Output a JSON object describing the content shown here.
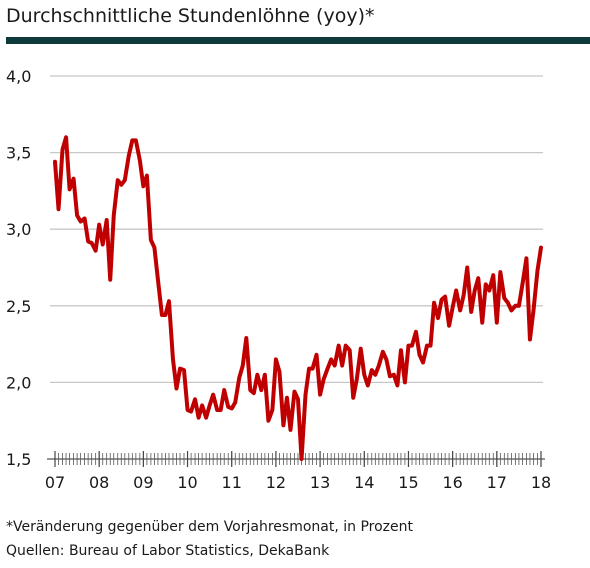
{
  "chart_data": {
    "type": "line",
    "title": "Durchschnittliche Stundenlöhne (yoy)*",
    "notes": [
      "*Veränderung gegenüber dem Vorjahresmonat, in Prozent",
      "Quellen: Bureau of Labor Statistics, DekaBank"
    ],
    "xlim": [
      7,
      18
    ],
    "xticks": [
      {
        "value": 7,
        "label": "07"
      },
      {
        "value": 8,
        "label": "08"
      },
      {
        "value": 9,
        "label": "09"
      },
      {
        "value": 10,
        "label": "10"
      },
      {
        "value": 11,
        "label": "11"
      },
      {
        "value": 12,
        "label": "12"
      },
      {
        "value": 13,
        "label": "13"
      },
      {
        "value": 14,
        "label": "14"
      },
      {
        "value": 15,
        "label": "15"
      },
      {
        "value": 16,
        "label": "16"
      },
      {
        "value": 17,
        "label": "17"
      },
      {
        "value": 18,
        "label": "18"
      }
    ],
    "ylim": [
      1.5,
      4.0
    ],
    "yticks": [
      {
        "value": 1.5,
        "label": "1,5"
      },
      {
        "value": 2.0,
        "label": "2,0"
      },
      {
        "value": 2.5,
        "label": "2,5"
      },
      {
        "value": 3.0,
        "label": "3,0"
      },
      {
        "value": 3.5,
        "label": "3,5"
      },
      {
        "value": 4.0,
        "label": "4,0"
      }
    ],
    "grid": true,
    "x": [
      7.0,
      7.08,
      7.17,
      7.25,
      7.33,
      7.42,
      7.5,
      7.58,
      7.67,
      7.75,
      7.83,
      7.92,
      8.0,
      8.08,
      8.17,
      8.25,
      8.33,
      8.42,
      8.5,
      8.58,
      8.67,
      8.75,
      8.83,
      8.92,
      9.0,
      9.08,
      9.17,
      9.25,
      9.33,
      9.42,
      9.5,
      9.58,
      9.67,
      9.75,
      9.83,
      9.92,
      10.0,
      10.08,
      10.17,
      10.25,
      10.33,
      10.42,
      10.5,
      10.58,
      10.67,
      10.75,
      10.83,
      10.92,
      11.0,
      11.08,
      11.17,
      11.25,
      11.33,
      11.42,
      11.5,
      11.58,
      11.67,
      11.75,
      11.83,
      11.92,
      12.0,
      12.08,
      12.17,
      12.25,
      12.33,
      12.42,
      12.5,
      12.58,
      12.67,
      12.75,
      12.83,
      12.92,
      13.0,
      13.08,
      13.17,
      13.25,
      13.33,
      13.42,
      13.5,
      13.58,
      13.67,
      13.75,
      13.83,
      13.92,
      14.0,
      14.08,
      14.17,
      14.25,
      14.33,
      14.42,
      14.5,
      14.58,
      14.67,
      14.75,
      14.83,
      14.92,
      15.0,
      15.08,
      15.17,
      15.25,
      15.33,
      15.42,
      15.5,
      15.58,
      15.67,
      15.75,
      15.83,
      15.92,
      16.0,
      16.08,
      16.17,
      16.25,
      16.33,
      16.42,
      16.5,
      16.58,
      16.67,
      16.75,
      16.83,
      16.92,
      17.0,
      17.08,
      17.17,
      17.25,
      17.33,
      17.42,
      17.5,
      17.58,
      17.67,
      17.75,
      17.83,
      17.92,
      18.0
    ],
    "series": [
      {
        "color": "#c00000",
        "values": [
          3.44,
          3.13,
          3.52,
          3.6,
          3.26,
          3.33,
          3.09,
          3.05,
          3.07,
          2.92,
          2.91,
          2.86,
          3.03,
          2.9,
          3.06,
          2.67,
          3.09,
          3.32,
          3.29,
          3.32,
          3.48,
          3.58,
          3.58,
          3.45,
          3.28,
          3.35,
          2.93,
          2.88,
          2.67,
          2.44,
          2.44,
          2.53,
          2.15,
          1.96,
          2.09,
          2.08,
          1.82,
          1.81,
          1.89,
          1.77,
          1.85,
          1.77,
          1.85,
          1.92,
          1.82,
          1.82,
          1.95,
          1.84,
          1.83,
          1.87,
          2.03,
          2.11,
          2.29,
          1.95,
          1.93,
          2.05,
          1.95,
          2.05,
          1.75,
          1.82,
          2.15,
          2.07,
          1.72,
          1.9,
          1.69,
          1.94,
          1.89,
          1.5,
          1.92,
          2.09,
          2.09,
          2.18,
          1.92,
          2.02,
          2.09,
          2.15,
          2.11,
          2.24,
          2.11,
          2.24,
          2.21,
          1.9,
          2.02,
          2.22,
          2.05,
          1.98,
          2.08,
          2.05,
          2.11,
          2.2,
          2.15,
          2.04,
          2.05,
          1.98,
          2.21,
          2.0,
          2.24,
          2.24,
          2.33,
          2.18,
          2.13,
          2.24,
          2.24,
          2.52,
          2.42,
          2.54,
          2.56,
          2.37,
          2.49,
          2.6,
          2.47,
          2.57,
          2.75,
          2.46,
          2.6,
          2.68,
          2.39,
          2.64,
          2.6,
          2.7,
          2.39,
          2.72,
          2.55,
          2.52,
          2.47,
          2.5,
          2.5,
          2.64,
          2.81,
          2.28,
          2.47,
          2.73,
          2.88
        ]
      }
    ]
  }
}
